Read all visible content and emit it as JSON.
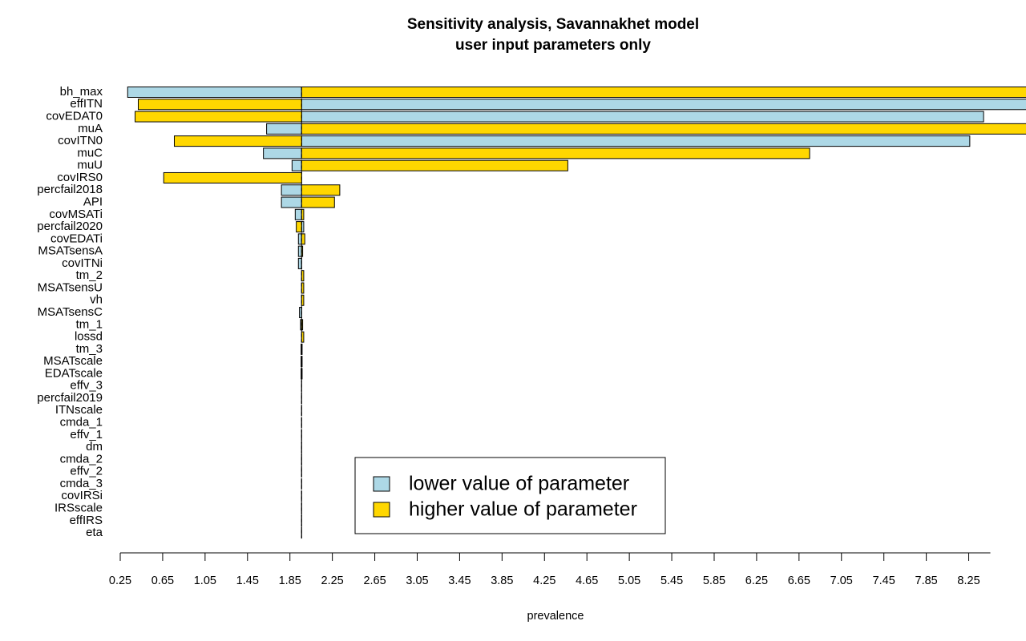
{
  "chart_data": {
    "type": "tornado",
    "title": "Sensitivity analysis, Savannakhet model",
    "subtitle": "user input parameters only",
    "x_label": "prevalence",
    "baseline": 1.96,
    "categories": [
      "bh_max",
      "effITN",
      "covEDAT0",
      "muA",
      "covITN0",
      "muC",
      "muU",
      "covIRS0",
      "percfail2018",
      "API",
      "covMSATi",
      "percfail2020",
      "covEDATi",
      "MSATsensA",
      "covITNi",
      "tm_2",
      "MSATsensU",
      "vh",
      "MSATsensC",
      "tm_1",
      "lossd",
      "tm_3",
      "MSATscale",
      "EDATscale",
      "effv_3",
      "percfail2019",
      "ITNscale",
      "cmda_1",
      "effv_1",
      "dm",
      "cmda_2",
      "effv_2",
      "cmda_3",
      "covIRSi",
      "IRSscale",
      "effIRS",
      "eta"
    ],
    "series": [
      {
        "name": "lower value of parameter",
        "color": "#add8e6",
        "values": [
          0.32,
          9.0,
          8.39,
          1.63,
          8.26,
          1.6,
          1.87,
          1.96,
          1.77,
          1.77,
          1.9,
          1.98,
          1.93,
          1.93,
          1.93,
          1.96,
          1.96,
          1.96,
          1.94,
          1.95,
          1.96,
          1.955,
          1.955,
          1.955,
          1.96,
          1.96,
          1.96,
          1.96,
          1.96,
          1.96,
          1.96,
          1.96,
          1.96,
          1.96,
          1.96,
          1.96,
          1.96
        ]
      },
      {
        "name": "higher value of parameter",
        "color": "#ffd700",
        "values": [
          9.0,
          0.42,
          0.39,
          9.0,
          0.76,
          6.75,
          4.47,
          0.66,
          2.32,
          2.27,
          1.98,
          1.91,
          1.99,
          1.97,
          1.96,
          1.98,
          1.98,
          1.98,
          1.96,
          1.97,
          1.98,
          1.965,
          1.965,
          1.965,
          1.96,
          1.96,
          1.96,
          1.96,
          1.96,
          1.96,
          1.96,
          1.96,
          1.96,
          1.96,
          1.96,
          1.96,
          1.96
        ]
      }
    ],
    "xlim": [
      0.25,
      8.79
    ],
    "xticks": [
      0.25,
      0.65,
      1.05,
      1.45,
      1.85,
      2.25,
      2.65,
      3.05,
      3.45,
      3.85,
      4.25,
      4.65,
      5.05,
      5.45,
      5.85,
      6.25,
      6.65,
      7.05,
      7.45,
      7.85,
      8.25
    ],
    "legend": "bottom-center"
  }
}
